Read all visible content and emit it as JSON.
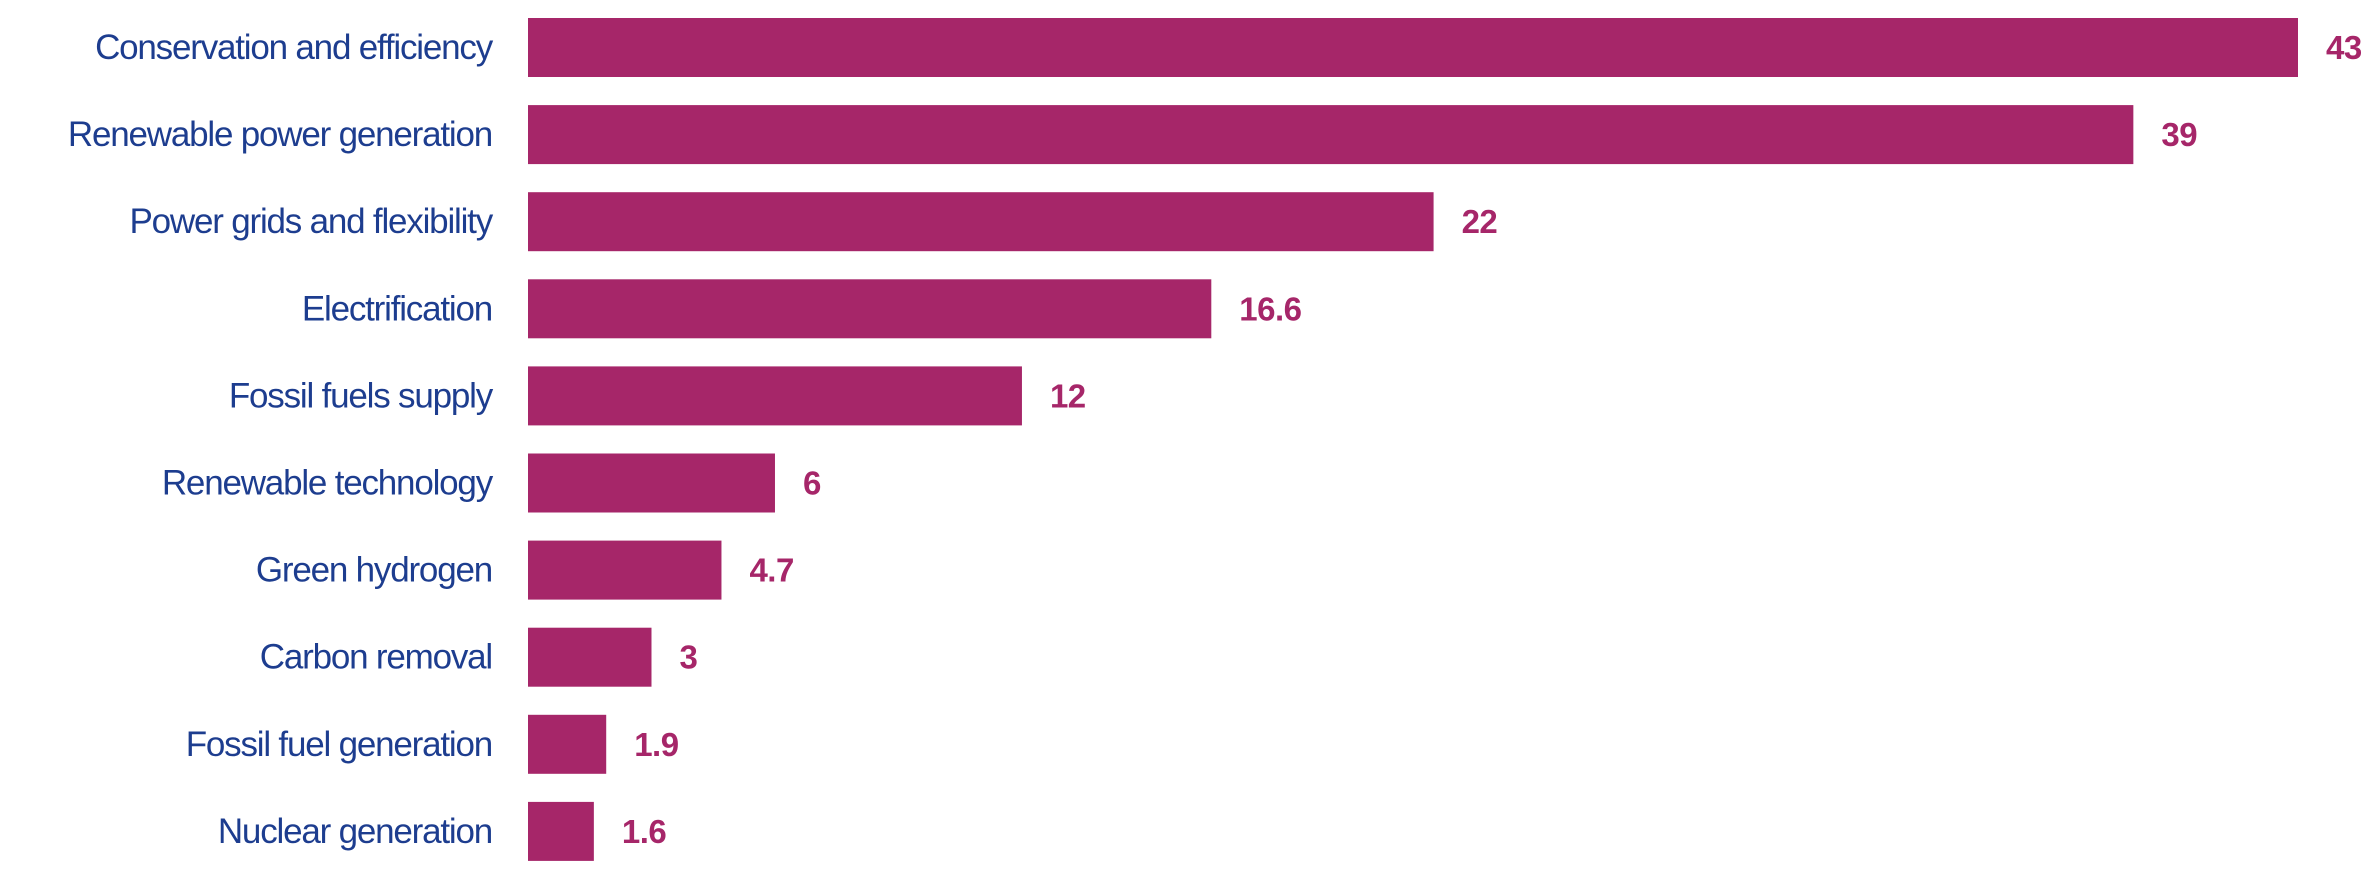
{
  "chart_data": {
    "type": "bar",
    "orientation": "horizontal",
    "categories": [
      "Conservation and efficiency",
      "Renewable power generation",
      "Power grids and flexibility",
      "Electrification",
      "Fossil fuels supply",
      "Renewable technology",
      "Green hydrogen",
      "Carbon removal",
      "Fossil fuel generation",
      "Nuclear generation"
    ],
    "values": [
      43,
      39,
      22,
      16.6,
      12,
      6,
      4.7,
      3,
      1.9,
      1.6
    ],
    "data_labels": [
      "43",
      "39",
      "22",
      "16.6",
      "12",
      "6",
      "4.7",
      "3",
      "1.9",
      "1.6"
    ],
    "title": "",
    "xlabel": "",
    "ylabel": "",
    "xlim": [
      0,
      43
    ],
    "grid": false,
    "legend": "none",
    "colors": {
      "bar": "#a62669",
      "category_text": "#1d3d8f",
      "value_text": "#a62669"
    }
  }
}
